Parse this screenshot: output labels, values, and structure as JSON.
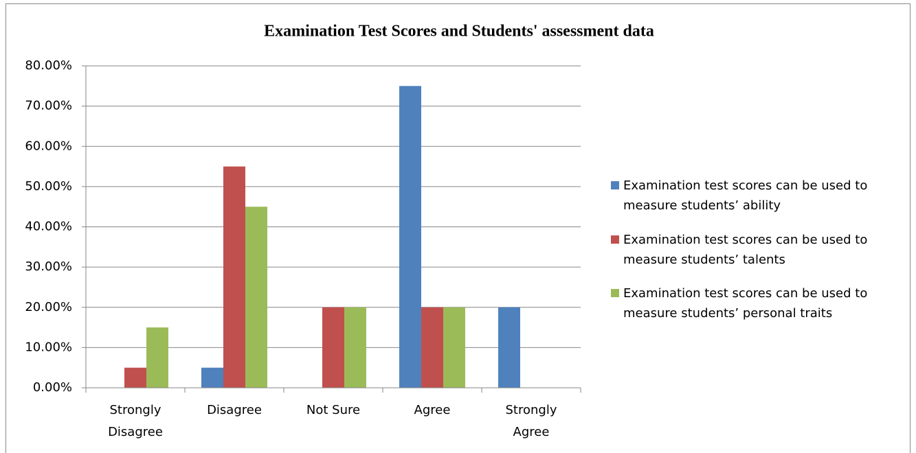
{
  "chart_data": {
    "type": "bar",
    "title": "Examination Test Scores and Students' assessment data",
    "categories": [
      "Strongly Disagree",
      "Disagree",
      "Not Sure",
      "Agree",
      "Strongly Agree"
    ],
    "series": [
      {
        "name": "Examination test scores can be used to measure students’ ability",
        "color": "#4f81bd",
        "values": [
          0,
          5,
          0,
          75,
          20
        ]
      },
      {
        "name": "Examination test scores can be used to measure students’ talents",
        "color": "#c0504d",
        "values": [
          5,
          55,
          20,
          20,
          0
        ]
      },
      {
        "name": "Examination test scores can be used to measure students’ personal traits",
        "color": "#9bbb59",
        "values": [
          15,
          45,
          20,
          20,
          0
        ]
      }
    ],
    "ylim": [
      0,
      80
    ],
    "yticks": [
      {
        "value": 0,
        "label": "0.00%"
      },
      {
        "value": 10,
        "label": "10.00%"
      },
      {
        "value": 20,
        "label": "20.00%"
      },
      {
        "value": 30,
        "label": "30.00%"
      },
      {
        "value": 40,
        "label": "40.00%"
      },
      {
        "value": 50,
        "label": "50.00%"
      },
      {
        "value": 60,
        "label": "60.00%"
      },
      {
        "value": 70,
        "label": "70.00%"
      },
      {
        "value": 80,
        "label": "80.00%"
      }
    ],
    "grid": true,
    "legend": "right"
  }
}
